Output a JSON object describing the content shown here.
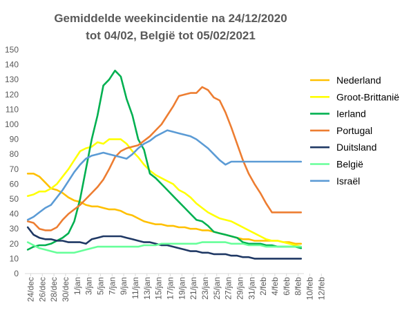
{
  "chart_data": {
    "type": "line",
    "title_lines": [
      "Gemiddelde weekincidentie  na 24/12/2020",
      "tot 04/02, België tot 05/02/2021"
    ],
    "x_tick_labels": [
      "24/dec",
      "26/dec",
      "28/dec",
      "30/dec",
      "1/jan",
      "3/jan",
      "5/jan",
      "7/jan",
      "9/jan",
      "11/jan",
      "13/jan",
      "15/jan",
      "17/jan",
      "19/jan",
      "21/jan",
      "23/jan",
      "25/jan",
      "27/jan",
      "29/jan",
      "31/jan",
      "2/feb",
      "4/feb",
      "6/feb",
      "8/feb",
      "10/feb",
      "12/feb"
    ],
    "ylim": [
      0,
      150
    ],
    "y_ticks": [
      0,
      10,
      20,
      30,
      40,
      50,
      60,
      70,
      80,
      90,
      100,
      110,
      120,
      130,
      140,
      150
    ],
    "grid": false,
    "legend_position": "right",
    "series": [
      {
        "name": "Nederland",
        "color": "#FFC000",
        "x": [
          0,
          1,
          2,
          3,
          4,
          5,
          6,
          7,
          8,
          9,
          10,
          11,
          12,
          13,
          14,
          15,
          16,
          17,
          18,
          19,
          20,
          21,
          22,
          23,
          24,
          25,
          26,
          27,
          28,
          29,
          30,
          31,
          32,
          33,
          34,
          35,
          36,
          37,
          38,
          39,
          40,
          41,
          42,
          43,
          44,
          45,
          46,
          47
        ],
        "y": [
          67,
          67,
          65,
          61,
          57,
          56,
          54,
          51,
          49,
          48,
          46,
          45,
          45,
          44,
          43,
          43,
          42,
          40,
          39,
          37,
          35,
          34,
          33,
          33,
          32,
          32,
          31,
          31,
          30,
          30,
          29,
          29,
          28,
          27,
          26,
          25,
          24,
          23,
          23,
          22,
          22,
          22,
          22,
          22,
          21,
          21,
          20,
          20
        ]
      },
      {
        "name": "Groot-Brittanië",
        "color": "#FFFF00",
        "x": [
          0,
          1,
          2,
          3,
          4,
          5,
          6,
          7,
          8,
          9,
          10,
          11,
          12,
          13,
          14,
          15,
          16,
          17,
          18,
          19,
          20,
          21,
          22,
          23,
          24,
          25,
          26,
          27,
          28,
          29,
          30,
          31,
          32,
          33,
          34,
          35,
          36,
          37,
          38,
          39,
          40,
          41,
          42,
          43,
          44,
          45,
          46,
          47
        ],
        "y": [
          52,
          53,
          55,
          55,
          57,
          60,
          65,
          70,
          76,
          82,
          84,
          85,
          88,
          87,
          90,
          90,
          90,
          87,
          82,
          78,
          73,
          69,
          66,
          64,
          62,
          60,
          56,
          54,
          51,
          47,
          44,
          41,
          39,
          37,
          36,
          35,
          33,
          31,
          29,
          27,
          25,
          23,
          22,
          22,
          21,
          20,
          19,
          18
        ]
      },
      {
        "name": "Ierland",
        "color": "#00B050",
        "x": [
          0,
          1,
          2,
          3,
          4,
          5,
          6,
          7,
          8,
          9,
          10,
          11,
          12,
          13,
          14,
          15,
          16,
          17,
          18,
          19,
          20,
          21,
          22,
          23,
          24,
          25,
          26,
          27,
          28,
          29,
          30,
          31,
          32,
          33,
          34,
          35,
          36,
          37,
          38,
          39,
          40,
          41,
          42,
          43,
          44,
          45,
          46,
          47
        ],
        "y": [
          16,
          18,
          19,
          19,
          20,
          22,
          24,
          27,
          35,
          50,
          70,
          90,
          106,
          126,
          130,
          136,
          132,
          117,
          106,
          90,
          83,
          67,
          64,
          60,
          56,
          52,
          48,
          44,
          40,
          36,
          35,
          32,
          28,
          27,
          26,
          25,
          24,
          21,
          20,
          20,
          20,
          19,
          19,
          18,
          18,
          18,
          18,
          17
        ]
      },
      {
        "name": "Portugal",
        "color": "#ED7D31",
        "x": [
          0,
          1,
          2,
          3,
          4,
          5,
          6,
          7,
          8,
          9,
          10,
          11,
          12,
          13,
          14,
          15,
          16,
          17,
          18,
          19,
          20,
          21,
          22,
          23,
          24,
          25,
          26,
          27,
          28,
          29,
          30,
          31,
          32,
          33,
          34,
          35,
          36,
          37,
          38,
          39,
          40,
          41,
          42,
          43,
          44,
          45,
          46,
          47
        ],
        "y": [
          35,
          34,
          30,
          29,
          29,
          31,
          36,
          40,
          43,
          46,
          50,
          54,
          58,
          63,
          70,
          78,
          82,
          84,
          85,
          86,
          89,
          92,
          96,
          100,
          106,
          112,
          119,
          120,
          121,
          121,
          125,
          123,
          118,
          116,
          108,
          98,
          87,
          76,
          67,
          60,
          54,
          47,
          41,
          41,
          41,
          41,
          41,
          41
        ]
      },
      {
        "name": "Duitsland",
        "color": "#1F3864",
        "x": [
          0,
          1,
          2,
          3,
          4,
          5,
          6,
          7,
          8,
          9,
          10,
          11,
          12,
          13,
          14,
          15,
          16,
          17,
          18,
          19,
          20,
          21,
          22,
          23,
          24,
          25,
          26,
          27,
          28,
          29,
          30,
          31,
          32,
          33,
          34,
          35,
          36,
          37,
          38,
          39,
          40,
          41,
          42,
          43,
          44,
          45,
          46,
          47
        ],
        "y": [
          31,
          26,
          24,
          23,
          23,
          22,
          22,
          21,
          21,
          21,
          20,
          23,
          24,
          25,
          25,
          25,
          25,
          24,
          23,
          22,
          21,
          21,
          20,
          19,
          19,
          18,
          17,
          16,
          15,
          15,
          14,
          14,
          13,
          13,
          13,
          12,
          12,
          11,
          11,
          10,
          10,
          10,
          10,
          10,
          10,
          10,
          10,
          10
        ]
      },
      {
        "name": "België",
        "color": "#66FF99",
        "x": [
          0,
          1,
          2,
          3,
          4,
          5,
          6,
          7,
          8,
          9,
          10,
          11,
          12,
          13,
          14,
          15,
          16,
          17,
          18,
          19,
          20,
          21,
          22,
          23,
          24,
          25,
          26,
          27,
          28,
          29,
          30,
          31,
          32,
          33,
          34,
          35,
          36,
          37,
          38,
          39,
          40,
          41,
          42,
          43,
          44,
          45,
          46,
          47
        ],
        "y": [
          21,
          19,
          17,
          16,
          15,
          14,
          14,
          14,
          14,
          15,
          16,
          17,
          18,
          18,
          18,
          18,
          18,
          18,
          18,
          18,
          19,
          19,
          19,
          20,
          20,
          20,
          20,
          20,
          20,
          20,
          21,
          21,
          21,
          21,
          21,
          20,
          20,
          20,
          19,
          19,
          19,
          18,
          18,
          18,
          18,
          18,
          18,
          18
        ]
      },
      {
        "name": "Israël",
        "color": "#5B9BD5",
        "x": [
          0,
          1,
          2,
          3,
          4,
          5,
          6,
          7,
          8,
          9,
          10,
          11,
          12,
          13,
          14,
          15,
          16,
          17,
          18,
          19,
          20,
          21,
          22,
          23,
          24,
          25,
          26,
          27,
          28,
          29,
          30,
          31,
          32,
          33,
          34,
          35,
          36,
          37,
          38,
          39,
          40,
          41,
          42,
          43,
          44,
          45,
          46,
          47
        ],
        "y": [
          36,
          38,
          41,
          44,
          46,
          51,
          56,
          62,
          68,
          73,
          77,
          79,
          80,
          81,
          80,
          79,
          78,
          77,
          80,
          84,
          87,
          89,
          92,
          94,
          96,
          95,
          94,
          93,
          92,
          90,
          87,
          84,
          80,
          76,
          73,
          75,
          75,
          75,
          75,
          75,
          75,
          75,
          75,
          75,
          75,
          75,
          75,
          75
        ]
      }
    ]
  }
}
